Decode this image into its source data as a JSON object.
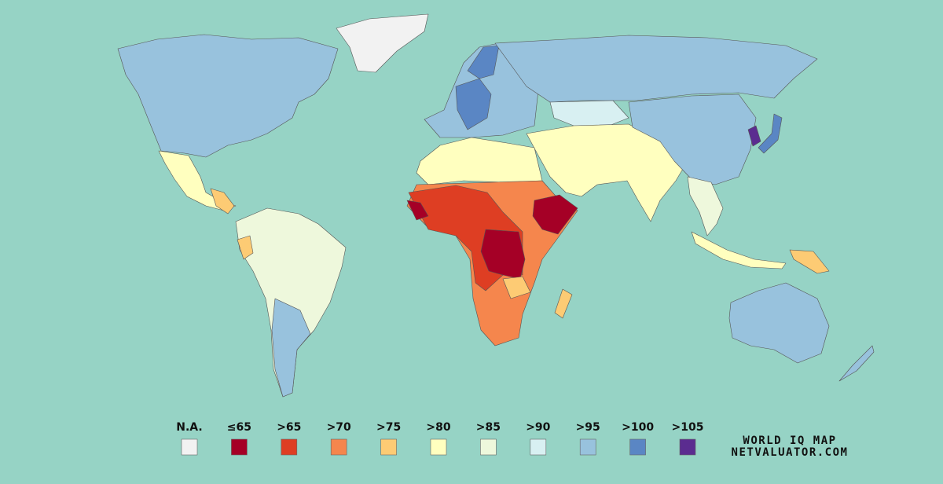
{
  "legend": [
    {
      "label": "N.A.",
      "color": "#f2f2f2"
    },
    {
      "label": "≤65",
      "color": "#a50026"
    },
    {
      "label": ">65",
      "color": "#de3e23"
    },
    {
      "label": ">70",
      "color": "#f5864d"
    },
    {
      "label": ">75",
      "color": "#fdcb74"
    },
    {
      "label": ">80",
      "color": "#ffffbf"
    },
    {
      "label": ">85",
      "color": "#eef8dc"
    },
    {
      "label": ">90",
      "color": "#d8f0f2"
    },
    {
      "label": ">95",
      "color": "#98c2dd"
    },
    {
      "label": ">100",
      "color": "#5a86c4"
    },
    {
      "label": ">105",
      "color": "#5b2c90"
    }
  ],
  "title": "WORLD IQ MAP",
  "source": "NETVALUATOR.COM"
}
